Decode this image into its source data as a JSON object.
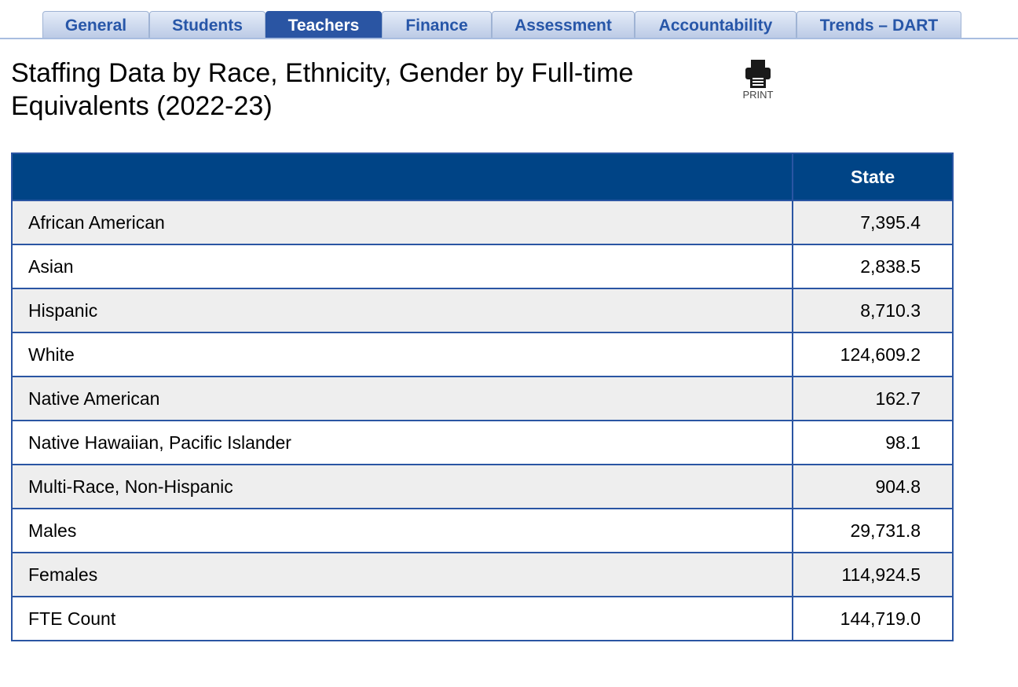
{
  "tabs": [
    {
      "label": "General",
      "active": false
    },
    {
      "label": "Students",
      "active": false
    },
    {
      "label": "Teachers",
      "active": true
    },
    {
      "label": "Finance",
      "active": false
    },
    {
      "label": "Assessment",
      "active": false
    },
    {
      "label": "Accountability",
      "active": false
    },
    {
      "label": "Trends – DART",
      "active": false
    }
  ],
  "page": {
    "title_line1": "Staffing Data by Race, Ethnicity, Gender by Full-time",
    "title_line2": "Equivalents (2022-23)",
    "print_label": "PRINT"
  },
  "table": {
    "header_label": "",
    "header_state": "State",
    "rows": [
      {
        "label": "African American",
        "value": "7,395.4"
      },
      {
        "label": "Asian",
        "value": "2,838.5"
      },
      {
        "label": "Hispanic",
        "value": "8,710.3"
      },
      {
        "label": "White",
        "value": "124,609.2"
      },
      {
        "label": "Native American",
        "value": "162.7"
      },
      {
        "label": "Native Hawaiian, Pacific Islander",
        "value": "98.1"
      },
      {
        "label": "Multi-Race, Non-Hispanic",
        "value": "904.8"
      },
      {
        "label": "Males",
        "value": "29,731.8"
      },
      {
        "label": "Females",
        "value": "114,924.5"
      },
      {
        "label": "FTE Count",
        "value": "144,719.0"
      }
    ]
  },
  "colors": {
    "header_bg": "#004486",
    "active_tab_bg": "#2a55a3",
    "tab_text": "#2756a8",
    "border": "#2a55a3",
    "stripe": "#eeeeee"
  }
}
